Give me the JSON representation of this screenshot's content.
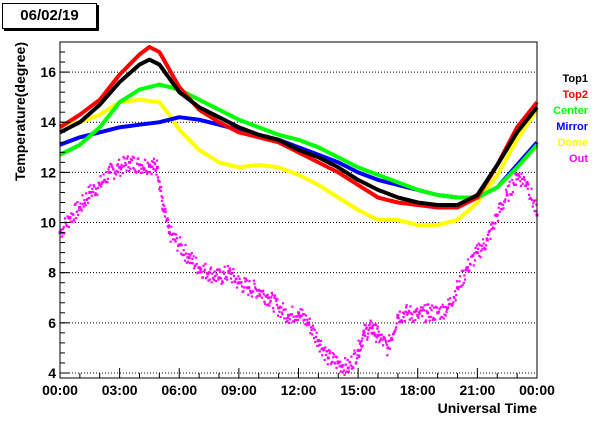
{
  "header": {
    "date": "06/02/19"
  },
  "chart_data": {
    "type": "line",
    "title": "",
    "xlabel": "Universal Time",
    "ylabel": "Temperature(degree)",
    "xlim": [
      0,
      24
    ],
    "ylim": [
      3.8,
      17.2
    ],
    "x_ticks": [
      "00:00",
      "03:00",
      "06:00",
      "09:00",
      "12:00",
      "15:00",
      "18:00",
      "21:00",
      "00:00"
    ],
    "y_ticks": [
      4,
      6,
      8,
      10,
      12,
      14,
      16
    ],
    "grid": "horizontal dotted",
    "legend_position": "right",
    "series": [
      {
        "name": "Top1",
        "color": "#000000",
        "style": "line",
        "x": [
          0,
          1,
          2,
          3,
          4,
          4.5,
          5,
          6,
          7,
          8,
          9,
          10,
          11,
          12,
          13,
          14,
          15,
          16,
          17,
          18,
          19,
          20,
          21,
          22,
          23,
          24
        ],
        "y": [
          13.6,
          14.0,
          14.7,
          15.6,
          16.3,
          16.5,
          16.3,
          15.2,
          14.6,
          14.2,
          13.8,
          13.5,
          13.3,
          12.9,
          12.6,
          12.2,
          11.7,
          11.3,
          11.0,
          10.8,
          10.7,
          10.7,
          11.1,
          12.3,
          13.6,
          14.6
        ]
      },
      {
        "name": "Top2",
        "color": "#ff0000",
        "style": "line",
        "x": [
          0,
          1,
          2,
          3,
          4,
          4.5,
          5,
          6,
          7,
          8,
          9,
          10,
          11,
          12,
          13,
          14,
          15,
          16,
          17,
          18,
          19,
          20,
          21,
          22,
          23,
          24
        ],
        "y": [
          13.8,
          14.3,
          14.9,
          15.9,
          16.7,
          17.0,
          16.8,
          15.4,
          14.5,
          14.0,
          13.6,
          13.4,
          13.2,
          12.8,
          12.4,
          12.0,
          11.5,
          11.0,
          10.8,
          10.7,
          10.6,
          10.6,
          11.0,
          12.3,
          13.8,
          14.8
        ]
      },
      {
        "name": "Center",
        "color": "#00ff00",
        "style": "line",
        "x": [
          0,
          1,
          2,
          3,
          4,
          5,
          6,
          7,
          8,
          9,
          10,
          11,
          12,
          13,
          14,
          15,
          16,
          17,
          18,
          19,
          20,
          21,
          22,
          23,
          24
        ],
        "y": [
          12.7,
          13.1,
          13.8,
          14.8,
          15.3,
          15.5,
          15.3,
          14.9,
          14.5,
          14.1,
          13.8,
          13.5,
          13.3,
          13.0,
          12.6,
          12.2,
          11.9,
          11.6,
          11.3,
          11.1,
          11.0,
          11.0,
          11.4,
          12.2,
          13.1
        ]
      },
      {
        "name": "Mirror",
        "color": "#0000ff",
        "style": "line",
        "x": [
          0,
          1,
          2,
          3,
          4,
          5,
          6,
          7,
          8,
          9,
          10,
          11,
          12,
          13,
          14,
          15,
          16,
          17,
          18,
          19,
          20,
          21,
          22,
          23,
          24
        ],
        "y": [
          13.1,
          13.4,
          13.6,
          13.8,
          13.9,
          14.0,
          14.2,
          14.1,
          13.9,
          13.7,
          13.5,
          13.3,
          13.0,
          12.7,
          12.4,
          12.0,
          11.7,
          11.5,
          11.3,
          11.1,
          11.0,
          11.0,
          11.4,
          12.3,
          13.2
        ]
      },
      {
        "name": "Dome",
        "color": "#ffff00",
        "style": "line",
        "x": [
          0,
          1,
          2,
          3,
          4,
          5,
          5.5,
          6,
          7,
          8,
          9,
          10,
          11,
          12,
          13,
          14,
          15,
          16,
          17,
          18,
          19,
          20,
          21,
          22,
          23,
          24
        ],
        "y": [
          13.9,
          14.0,
          14.3,
          14.8,
          14.9,
          14.8,
          14.3,
          13.7,
          12.9,
          12.4,
          12.2,
          12.3,
          12.2,
          11.9,
          11.5,
          11.0,
          10.5,
          10.1,
          10.1,
          9.9,
          9.9,
          10.1,
          10.8,
          11.9,
          13.3,
          14.5
        ]
      },
      {
        "name": "Out",
        "color": "#ff00ff",
        "style": "scatter",
        "x": [
          0,
          0.5,
          1,
          1.5,
          2,
          2.5,
          3,
          3.5,
          4,
          4.5,
          4.9,
          5.2,
          5.5,
          6,
          6.5,
          7,
          7.5,
          8,
          8.5,
          9,
          9.5,
          10,
          10.5,
          11,
          11.5,
          12,
          12.5,
          13,
          13.5,
          14,
          14.5,
          15,
          15.3,
          15.7,
          16,
          16.5,
          17,
          17.5,
          18,
          18.5,
          19,
          19.5,
          20,
          20.5,
          21,
          21.5,
          22,
          22.5,
          23,
          23.5,
          24
        ],
        "y": [
          9.6,
          10.2,
          10.6,
          11.2,
          11.5,
          12.0,
          12.2,
          12.4,
          12.3,
          12.3,
          12.2,
          10.5,
          9.6,
          9.1,
          8.6,
          8.2,
          8.0,
          7.8,
          8.0,
          7.6,
          7.4,
          7.3,
          7.0,
          6.6,
          6.3,
          6.4,
          6.0,
          5.3,
          4.6,
          4.4,
          4.2,
          4.9,
          5.6,
          5.8,
          5.5,
          5.0,
          6.3,
          6.4,
          6.3,
          6.4,
          6.4,
          6.6,
          7.4,
          8.2,
          8.8,
          9.3,
          10.3,
          11.1,
          11.9,
          11.6,
          10.3
        ]
      }
    ]
  }
}
